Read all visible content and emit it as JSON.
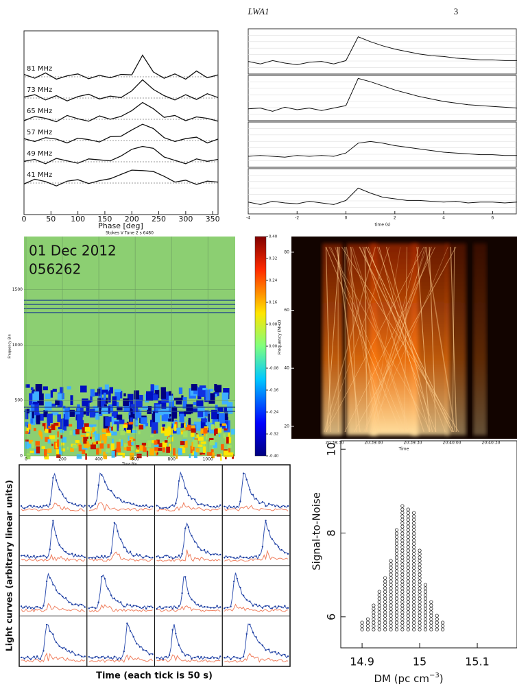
{
  "header": {
    "title": "LWA1",
    "page_number": "3"
  },
  "chart_data": [
    {
      "type": "line",
      "xlabel": "Phase [deg]",
      "x": [
        0,
        20,
        40,
        60,
        80,
        100,
        120,
        140,
        160,
        180,
        200,
        220,
        240,
        260,
        280,
        300,
        320,
        340,
        360
      ],
      "xlim": [
        0,
        360
      ],
      "xticks": [
        0,
        50,
        100,
        150,
        200,
        250,
        300,
        350
      ],
      "series": [
        {
          "name": "81 MHz",
          "color": "#111",
          "values": [
            0.5,
            -0.3,
            0.8,
            -0.5,
            0.2,
            0.6,
            -0.4,
            0.3,
            -0.2,
            0.5,
            0.4,
            4.5,
            1.0,
            -0.3,
            0.6,
            -0.5,
            1.2,
            -0.2,
            0.4
          ]
        },
        {
          "name": "73 MHz",
          "color": "#111",
          "values": [
            0.2,
            0.7,
            -0.4,
            0.5,
            -0.6,
            0.3,
            0.8,
            -0.2,
            0.4,
            0.1,
            1.5,
            3.8,
            1.8,
            0.5,
            -0.4,
            0.7,
            -0.3,
            0.9,
            0.1
          ]
        },
        {
          "name": "65 MHz",
          "color": "#111",
          "values": [
            -0.3,
            0.6,
            0.2,
            -0.5,
            0.8,
            0.1,
            -0.4,
            0.7,
            0.0,
            0.6,
            1.8,
            3.5,
            2.2,
            0.4,
            0.8,
            -0.3,
            0.5,
            0.2,
            -0.4
          ]
        },
        {
          "name": "57 MHz",
          "color": "#111",
          "values": [
            0.4,
            -0.2,
            0.6,
            0.3,
            -0.5,
            0.5,
            0.2,
            -0.3,
            0.8,
            0.9,
            2.2,
            3.4,
            2.5,
            0.6,
            -0.2,
            0.4,
            0.7,
            -0.5,
            0.3
          ]
        },
        {
          "name": "49 MHz",
          "color": "#111",
          "values": [
            0.1,
            0.5,
            -0.4,
            0.7,
            0.2,
            -0.3,
            0.6,
            0.4,
            0.2,
            1.2,
            2.6,
            3.2,
            2.8,
            1.0,
            0.3,
            -0.4,
            0.6,
            0.1,
            0.5
          ]
        },
        {
          "name": "41 MHz",
          "color": "#111",
          "values": [
            -0.2,
            0.8,
            0.3,
            -0.6,
            0.4,
            0.7,
            -0.1,
            0.5,
            0.9,
            1.8,
            2.7,
            2.6,
            2.4,
            1.4,
            0.2,
            0.6,
            -0.3,
            0.4,
            0.2
          ]
        }
      ]
    },
    {
      "type": "line",
      "xlabel": "time (s)",
      "x": [
        -4,
        -3.5,
        -3,
        -2.5,
        -2,
        -1.5,
        -1,
        -0.5,
        0,
        0.5,
        1,
        1.5,
        2,
        2.5,
        3,
        3.5,
        4,
        4.5,
        5,
        5.5,
        6,
        6.5,
        7
      ],
      "xlim": [
        -4,
        7
      ],
      "xticks": [
        -4,
        -2,
        0,
        2,
        4,
        6
      ],
      "series": [
        {
          "color": "#111",
          "values": [
            0.2,
            -0.1,
            0.3,
            0.0,
            -0.2,
            0.1,
            0.2,
            -0.1,
            0.3,
            3.2,
            2.6,
            2.1,
            1.7,
            1.4,
            1.1,
            0.9,
            0.8,
            0.6,
            0.5,
            0.4,
            0.4,
            0.3,
            0.3
          ]
        },
        {
          "color": "#111",
          "values": [
            0.1,
            0.2,
            -0.2,
            0.3,
            0.0,
            0.2,
            -0.1,
            0.2,
            0.5,
            3.8,
            3.4,
            2.9,
            2.4,
            2.0,
            1.6,
            1.3,
            1.0,
            0.8,
            0.6,
            0.5,
            0.4,
            0.3,
            0.2
          ]
        },
        {
          "color": "#111",
          "values": [
            0.0,
            0.1,
            0.0,
            -0.1,
            0.1,
            0.0,
            0.1,
            0.0,
            0.4,
            1.6,
            1.8,
            1.6,
            1.3,
            1.1,
            0.9,
            0.7,
            0.5,
            0.4,
            0.3,
            0.2,
            0.2,
            0.1,
            0.1
          ]
        },
        {
          "color": "#111",
          "values": [
            0.1,
            -0.2,
            0.2,
            0.0,
            -0.1,
            0.2,
            0.0,
            -0.2,
            0.3,
            1.8,
            1.2,
            0.7,
            0.5,
            0.3,
            0.3,
            0.2,
            0.1,
            0.2,
            0.0,
            0.1,
            0.1,
            0.0,
            0.1
          ]
        }
      ]
    },
    {
      "type": "heatmap",
      "title": "Stokes V Tune 2 s 6480",
      "annotations": [
        "01 Dec 2012",
        "056262"
      ],
      "xlabel": "Time Bin",
      "ylabel": "Frequency Bin",
      "xlim": [
        0,
        1150
      ],
      "xticks": [
        0,
        200,
        400,
        600,
        800,
        1000
      ],
      "ylim": [
        0,
        1980
      ],
      "yticks": [
        0,
        500,
        1000,
        1500
      ],
      "colorbar_lim": [
        -0.4,
        0.4
      ],
      "colorbar_ticks": [
        {
          "value": 0.4,
          "label": "0.40"
        },
        {
          "value": 0.32,
          "label": "0.32"
        },
        {
          "value": 0.24,
          "label": "0.24"
        },
        {
          "value": 0.16,
          "label": "0.16"
        },
        {
          "value": 0.08,
          "label": "0.08"
        },
        {
          "value": 0,
          "label": "0.00"
        },
        {
          "value": -0.08,
          "label": "-0.08"
        },
        {
          "value": -0.16,
          "label": "-0.16"
        },
        {
          "value": -0.24,
          "label": "-0.24"
        },
        {
          "value": -0.32,
          "label": "-0.32"
        },
        {
          "value": -0.4,
          "label": "-0.40"
        }
      ]
    },
    {
      "type": "heatmap",
      "xlabel": "Time",
      "ylabel": "Frequency (MHz)",
      "categories": [
        "20:38:30",
        "20:39:00",
        "20:39:30",
        "20:40:00",
        "20:40:30"
      ],
      "ylim": [
        15.7,
        85.4
      ],
      "yticks": [
        20,
        40,
        60,
        80
      ]
    },
    {
      "type": "line",
      "xlabel": "Time (each tick is 50 s)",
      "ylabel": "Light curves (arbitrary linear units)"
    },
    {
      "type": "scatter",
      "xlabel": "DM (pc cm",
      "xlabel_exponent": "−3",
      "xlabel_end": ")",
      "ylabel": "Signal-to-Noise",
      "x": [
        14.9,
        14.91,
        14.92,
        14.93,
        14.94,
        14.95,
        14.96,
        14.97,
        14.98,
        14.99,
        15.0,
        15.01,
        15.02,
        15.03,
        15.04
      ],
      "values": [
        5.9,
        6.0,
        6.3,
        6.6,
        7.0,
        7.4,
        8.1,
        8.7,
        8.6,
        8.5,
        7.6,
        6.8,
        6.4,
        6.1,
        5.9
      ],
      "low": [
        5.7,
        5.7,
        5.7,
        5.7,
        5.7,
        5.7,
        5.7,
        5.7,
        5.7,
        5.7,
        5.7,
        5.7,
        5.7,
        5.7,
        5.7
      ],
      "xlim": [
        14.863,
        15.169
      ],
      "xticks": [
        14.9,
        15,
        15.1
      ],
      "ylim": [
        5.26,
        10.2
      ],
      "yticks": [
        6,
        8,
        10
      ]
    }
  ]
}
